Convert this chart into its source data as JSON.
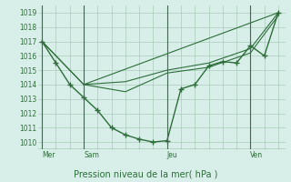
{
  "bg_color": "#d8eee8",
  "grid_color": "#aaccbb",
  "line_color": "#2d6e3a",
  "title": "Pression niveau de la mer( hPa )",
  "ylim": [
    1009.5,
    1019.5
  ],
  "yticks": [
    1010,
    1011,
    1012,
    1013,
    1014,
    1015,
    1016,
    1017,
    1018,
    1019
  ],
  "day_labels": [
    "Mer",
    "Sam",
    "Jeu",
    "Ven"
  ],
  "day_positions": [
    0,
    3,
    9,
    15
  ],
  "vline_positions": [
    0,
    3,
    9,
    15
  ],
  "line1": {
    "x": [
      0,
      1,
      2,
      3,
      4,
      5,
      6,
      7,
      8,
      9,
      10,
      11,
      12,
      13,
      14,
      15,
      16,
      17
    ],
    "y": [
      1017,
      1015.5,
      1014,
      1013.1,
      1012.2,
      1011,
      1010.5,
      1010.2,
      1010,
      1010.1,
      1013.7,
      1014,
      1015.3,
      1015.6,
      1015.5,
      1016.7,
      1016,
      1019.0
    ]
  },
  "line2": {
    "x": [
      0,
      3,
      6,
      9,
      12,
      15,
      17
    ],
    "y": [
      1017,
      1014,
      1014.2,
      1015.0,
      1015.5,
      1016.5,
      1019.0
    ]
  },
  "line3": {
    "x": [
      0,
      3,
      6,
      9,
      12,
      15,
      17
    ],
    "y": [
      1017,
      1014,
      1013.5,
      1014.8,
      1015.2,
      1016.2,
      1018.8
    ]
  },
  "line4": {
    "x": [
      3,
      17
    ],
    "y": [
      1014,
      1019.0
    ]
  }
}
